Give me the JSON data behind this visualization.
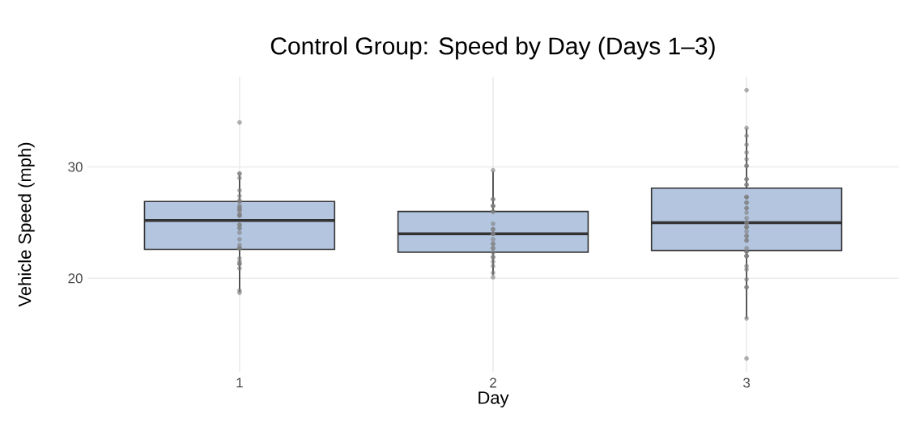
{
  "chart_data": {
    "type": "box",
    "title": "Control Group: Speed by Day (Days 1–3)",
    "xlabel": "Day",
    "ylabel": "Vehicle Speed (mph)",
    "categories": [
      "1",
      "2",
      "3"
    ],
    "ylim": [
      11.6,
      38.1
    ],
    "yticks": [
      20,
      30
    ],
    "grid": true,
    "series": [
      {
        "type": "box",
        "color": "#b3c5df",
        "boxes": [
          {
            "low": 18.75,
            "q1": 22.6,
            "median": 25.2,
            "q3": 26.9,
            "high": 29.3
          },
          {
            "low": 20.3,
            "q1": 22.35,
            "median": 24.0,
            "q3": 26.0,
            "high": 29.6
          },
          {
            "low": 16.4,
            "q1": 22.5,
            "median": 25.0,
            "q3": 28.1,
            "high": 33.45
          }
        ]
      },
      {
        "type": "scatter",
        "color": "#7f7f7f",
        "marker": "circle",
        "x": [
          "1",
          "1",
          "1",
          "1",
          "1",
          "1",
          "1",
          "1",
          "1",
          "1",
          "1",
          "1",
          "1",
          "1",
          "1",
          "1",
          "1",
          "1",
          "1",
          "1",
          "1",
          "1",
          "1",
          "1",
          "1",
          "1",
          "1",
          "1",
          "1",
          "1",
          "1",
          "1",
          "1",
          "1",
          "2",
          "2",
          "2",
          "2",
          "2",
          "2",
          "2",
          "2",
          "2",
          "2",
          "2",
          "2",
          "2",
          "2",
          "2",
          "2",
          "2",
          "2",
          "2",
          "2",
          "2",
          "2",
          "2",
          "2",
          "2",
          "2",
          "3",
          "3",
          "3",
          "3",
          "3",
          "3",
          "3",
          "3",
          "3",
          "3",
          "3",
          "3",
          "3",
          "3",
          "3",
          "3",
          "3",
          "3",
          "3",
          "3",
          "3",
          "3",
          "3",
          "3",
          "3",
          "3",
          "3",
          "3",
          "3",
          "3",
          "3",
          "3",
          "3",
          "3",
          "3",
          "3",
          "3",
          "3",
          "3",
          "3",
          "3",
          "3",
          "3",
          "3"
        ],
        "values": [
          34.0,
          29.4,
          29.4,
          29.0,
          27.9,
          27.4,
          27.0,
          26.9,
          26.9,
          26.5,
          26.4,
          26.2,
          26.2,
          26.0,
          25.7,
          25.7,
          25.6,
          24.8,
          24.8,
          24.5,
          24.5,
          24.1,
          23.5,
          23.0,
          22.7,
          22.7,
          22.7,
          21.8,
          21.5,
          21.3,
          21.3,
          20.9,
          18.9,
          18.7,
          29.7,
          27.1,
          27.1,
          26.5,
          26.5,
          26.5,
          26.0,
          26.0,
          24.9,
          24.4,
          24.4,
          24.0,
          24.0,
          24.0,
          23.5,
          23.1,
          23.1,
          22.7,
          22.7,
          22.3,
          21.9,
          21.9,
          21.5,
          21.1,
          20.5,
          20.1,
          36.9,
          33.5,
          32.8,
          32.0,
          31.3,
          30.7,
          30.1,
          30.1,
          28.9,
          28.9,
          28.4,
          28.4,
          27.3,
          27.3,
          27.3,
          26.8,
          26.8,
          26.3,
          26.3,
          25.9,
          25.4,
          25.0,
          25.0,
          24.6,
          24.6,
          24.6,
          24.2,
          23.8,
          23.8,
          23.4,
          23.4,
          22.7,
          22.4,
          22.4,
          22.0,
          22.0,
          22.0,
          21.1,
          20.8,
          19.9,
          19.2,
          19.2,
          16.4,
          12.8
        ]
      }
    ]
  }
}
